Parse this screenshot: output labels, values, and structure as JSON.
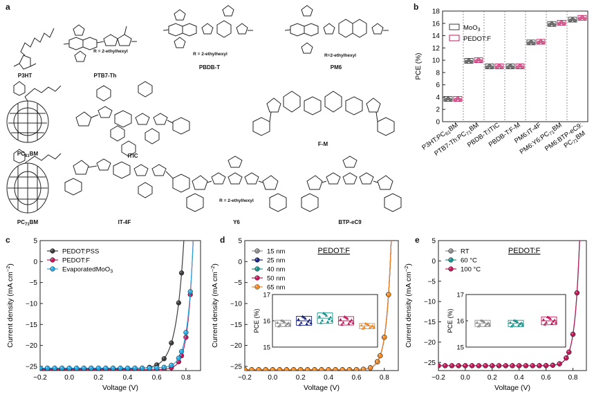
{
  "panels": {
    "a": "a",
    "b": "b",
    "c": "c",
    "d": "d",
    "e": "e"
  },
  "molecules": [
    {
      "label": "P3HT",
      "sub": "",
      "note": "",
      "tail": ""
    },
    {
      "label": "PTB7-Th",
      "sub": "",
      "note": "R = 2-ethylhexyl",
      "tail": ""
    },
    {
      "label": "PBDB-T",
      "sub": "",
      "note": "R = 2-ethylhexyl",
      "tail": ""
    },
    {
      "label": "PM6",
      "sub": "",
      "note": "R=2-ethylhexyl",
      "tail": ""
    },
    {
      "label": "PC",
      "sub": "61",
      "note": "",
      "tail": "BM"
    },
    {
      "label": "ITIC",
      "sub": "",
      "note": "",
      "tail": ""
    },
    {
      "label": "F-M",
      "sub": "",
      "note": "",
      "tail": ""
    },
    {
      "label": "PC",
      "sub": "71",
      "note": "",
      "tail": "BM"
    },
    {
      "label": "IT-4F",
      "sub": "",
      "note": "",
      "tail": ""
    },
    {
      "label": "Y6",
      "sub": "",
      "note": "R = 2-ethylhexyl",
      "tail": ""
    },
    {
      "label": "BTP-eC9",
      "sub": "",
      "note": "",
      "tail": ""
    }
  ],
  "colors": {
    "black": "#3a3a3a",
    "magenta": "#c2185b",
    "cyan": "#29a8e0",
    "grey": "#8c8c8c",
    "navy": "#1a237e",
    "teal": "#17928a",
    "orange": "#f08a24"
  },
  "chart_data": [
    {
      "panel": "b",
      "type": "scatter",
      "ylabel": "PCE (%)",
      "ylim": [
        0,
        18
      ],
      "yticks": [
        0,
        2,
        4,
        6,
        8,
        10,
        12,
        14,
        16,
        18
      ],
      "categories": [
        {
          "parts": [
            [
              "P3HT:PC",
              ""
            ],
            [
              "61",
              "sub"
            ],
            [
              "BM",
              ""
            ]
          ]
        },
        {
          "parts": [
            [
              "PTB7-Th:PC",
              ""
            ],
            [
              "71",
              "sub"
            ],
            [
              "BM",
              ""
            ]
          ]
        },
        {
          "parts": [
            [
              "PBDB-T:ITIC",
              ""
            ]
          ]
        },
        {
          "parts": [
            [
              "PBDB-T:F-M",
              ""
            ]
          ]
        },
        {
          "parts": [
            [
              "PM6:IT-4F",
              ""
            ]
          ]
        },
        {
          "parts": [
            [
              "PM6:Y6:PC",
              ""
            ],
            [
              "71",
              "sub"
            ],
            [
              "BM",
              ""
            ]
          ]
        },
        {
          "parts": [
            [
              "PM6:BTP-eC9:",
              ""
            ]
          ],
          "line2": [
            [
              "PC",
              ""
            ],
            [
              "71",
              "sub"
            ],
            [
              "BM",
              ""
            ]
          ]
        }
      ],
      "series": [
        {
          "name": "MoO",
          "name_sub": "3",
          "color": "#3a3a3a",
          "values": [
            3.7,
            9.9,
            9.0,
            9.0,
            12.9,
            15.9,
            16.6
          ]
        },
        {
          "name": "PEDOT:F",
          "name_sub": "",
          "color": "#c2185b",
          "values": [
            3.7,
            10.0,
            9.0,
            9.0,
            13.0,
            16.1,
            16.9
          ]
        }
      ],
      "legend": "top-left",
      "grid": false
    },
    {
      "panel": "c",
      "type": "line",
      "xlabel": "Voltage (V)",
      "ylabel": "Current density (mA cm⁻²)",
      "ylabel_main": "Current density (mA cm",
      "ylabel_sup": "−2",
      "ylabel_end": ")",
      "xlim": [
        -0.2,
        0.9
      ],
      "ylim": [
        -26,
        5
      ],
      "xticks": [
        -0.2,
        0.0,
        0.2,
        0.4,
        0.6,
        0.8
      ],
      "yticks": [
        -25,
        -20,
        -15,
        -10,
        -5,
        0,
        5
      ],
      "series": [
        {
          "name": "PEDOT:PSS",
          "name_sub": "",
          "color": "#3a3a3a",
          "jsc": 25.6,
          "voc": 0.776,
          "n": 1.53,
          "vmax": 0.792
        },
        {
          "name": "PEDOT:F",
          "name_sub": "",
          "color": "#c2185b",
          "jsc": 25.8,
          "voc": 0.843,
          "n": 1.02,
          "vmax": 0.855
        },
        {
          "name": "EvaporatedMoO",
          "name_sub": "3",
          "color": "#29a8e0",
          "jsc": 25.4,
          "voc": 0.843,
          "n": 1.12,
          "vmax": 0.857
        }
      ],
      "legend": "top-left"
    },
    {
      "panel": "d",
      "type": "line",
      "title": "PEDOT:F",
      "xlabel": "Voltage (V)",
      "ylabel_main": "Current density (mA cm",
      "ylabel_sup": "−2",
      "ylabel_end": ")",
      "xlim": [
        -0.2,
        0.9
      ],
      "ylim": [
        -26,
        5
      ],
      "xticks": [
        -0.2,
        0.0,
        0.2,
        0.4,
        0.6,
        0.8
      ],
      "yticks": [
        -25,
        -20,
        -15,
        -10,
        -5,
        0,
        5
      ],
      "series": [
        {
          "name": "15 nm",
          "color": "#8c8c8c",
          "jsc": 25.8,
          "voc": 0.843,
          "n": 1.02,
          "vmax": 0.855
        },
        {
          "name": "25 nm",
          "color": "#1a237e",
          "jsc": 25.8,
          "voc": 0.843,
          "n": 1.02,
          "vmax": 0.855
        },
        {
          "name": "40 nm",
          "color": "#17928a",
          "jsc": 25.8,
          "voc": 0.843,
          "n": 1.02,
          "vmax": 0.855
        },
        {
          "name": "50 nm",
          "color": "#c2185b",
          "jsc": 25.8,
          "voc": 0.843,
          "n": 1.02,
          "vmax": 0.855
        },
        {
          "name": "65 nm",
          "color": "#f08a24",
          "jsc": 25.8,
          "voc": 0.843,
          "n": 1.02,
          "vmax": 0.855
        }
      ],
      "legend": "top-left",
      "inset": {
        "ylabel": "PCE (%)",
        "ylim": [
          15,
          17
        ],
        "yticks": [
          15,
          16,
          17
        ],
        "medians": [
          15.9,
          16.0,
          16.1,
          16.0,
          15.8
        ],
        "spread": [
          0.12,
          0.17,
          0.2,
          0.16,
          0.1
        ]
      }
    },
    {
      "panel": "e",
      "type": "line",
      "title": "PEDOT:F",
      "xlabel": "Voltage (V)",
      "ylabel_main": "Current density (mA cm",
      "ylabel_sup": "−2",
      "ylabel_end": ")",
      "xlim": [
        -0.2,
        0.9
      ],
      "ylim": [
        -27,
        5
      ],
      "xticks": [
        -0.2,
        0.0,
        0.2,
        0.4,
        0.6,
        0.8
      ],
      "yticks": [
        -25,
        -20,
        -15,
        -10,
        -5,
        0,
        5
      ],
      "series": [
        {
          "name": "RT",
          "color": "#8c8c8c",
          "jsc": 25.8,
          "voc": 0.843,
          "n": 1.02,
          "vmax": 0.855
        },
        {
          "name": "60 °C",
          "color": "#17928a",
          "jsc": 25.8,
          "voc": 0.843,
          "n": 1.02,
          "vmax": 0.855
        },
        {
          "name": "100 °C",
          "color": "#c2185b",
          "jsc": 25.8,
          "voc": 0.843,
          "n": 1.02,
          "vmax": 0.855
        }
      ],
      "legend": "top-left",
      "inset": {
        "ylabel": "PCE (%)",
        "ylim": [
          15,
          17
        ],
        "yticks": [
          15,
          16,
          17
        ],
        "medians": [
          15.9,
          15.9,
          16.0
        ],
        "spread": [
          0.12,
          0.12,
          0.15
        ]
      }
    }
  ]
}
